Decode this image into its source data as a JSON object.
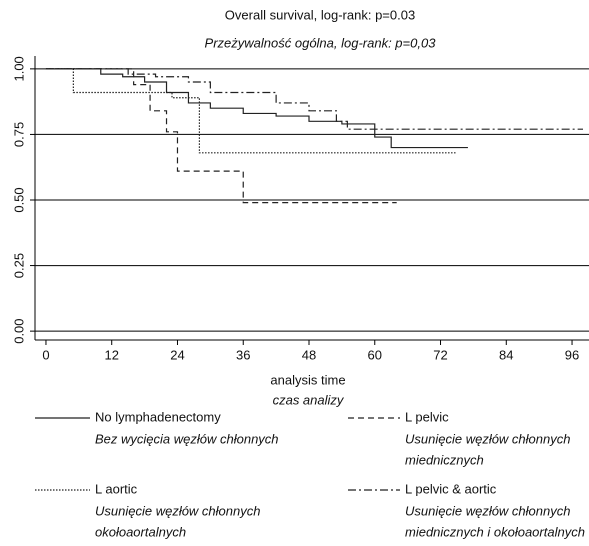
{
  "chart_data": {
    "type": "step",
    "title": "Overall survival, log-rank: p=0.03",
    "subtitle": "Przeżywalność ogólna, log-rank: p=0,03",
    "x_label": "analysis time",
    "x_label_2": "czas analizy",
    "xlim": [
      -2,
      98
    ],
    "xticks": [
      0,
      12,
      24,
      36,
      48,
      60,
      72,
      84,
      96
    ],
    "ylim": [
      -0.03,
      1.03
    ],
    "yticks": [
      {
        "value": 0,
        "label": "0.00"
      },
      {
        "value": 0.25,
        "label": "0.25"
      },
      {
        "value": 0.5,
        "label": "0.50"
      },
      {
        "value": 0.75,
        "label": "0.75"
      },
      {
        "value": 1,
        "label": "1.00"
      }
    ],
    "grid": true,
    "series": [
      {
        "name": "No lymphadenectomy",
        "description": [
          "Bez wycięcia węzłów chłonnych"
        ],
        "color": "#222",
        "dash": "solid",
        "x": [
          0,
          10,
          14,
          18,
          22,
          26,
          30,
          36,
          42,
          48,
          54,
          60,
          63,
          77
        ],
        "values": [
          1,
          0.98,
          0.97,
          0.95,
          0.91,
          0.87,
          0.85,
          0.83,
          0.82,
          0.8,
          0.79,
          0.74,
          0.7,
          0.7
        ]
      },
      {
        "name": "L pelvic",
        "description": [
          "Usunięcie węzłów chłonnych",
          "miednicznych"
        ],
        "color": "#222",
        "dash": "dashed",
        "x": [
          0,
          16,
          19,
          22,
          24,
          36,
          64
        ],
        "values": [
          1,
          0.94,
          0.84,
          0.76,
          0.61,
          0.49,
          0.49
        ]
      },
      {
        "name": "L aortic",
        "description": [
          "Usunięcie węzłów chłonnych",
          "okołoaortalnych"
        ],
        "color": "#222",
        "dash": "dotted",
        "x": [
          0,
          5,
          23,
          28,
          75
        ],
        "values": [
          1,
          0.91,
          0.89,
          0.68,
          0.68
        ]
      },
      {
        "name": "L pelvic & aortic",
        "description": [
          "Usunięcie węzłów chłonnych",
          "miednicznych i okołoaortalnych"
        ],
        "color": "#222",
        "dash": "dashdot",
        "x": [
          0,
          15,
          20,
          26,
          30,
          42,
          48,
          53,
          55,
          98
        ],
        "values": [
          1,
          0.98,
          0.97,
          0.95,
          0.91,
          0.87,
          0.84,
          0.8,
          0.77,
          0.77
        ]
      }
    ]
  }
}
